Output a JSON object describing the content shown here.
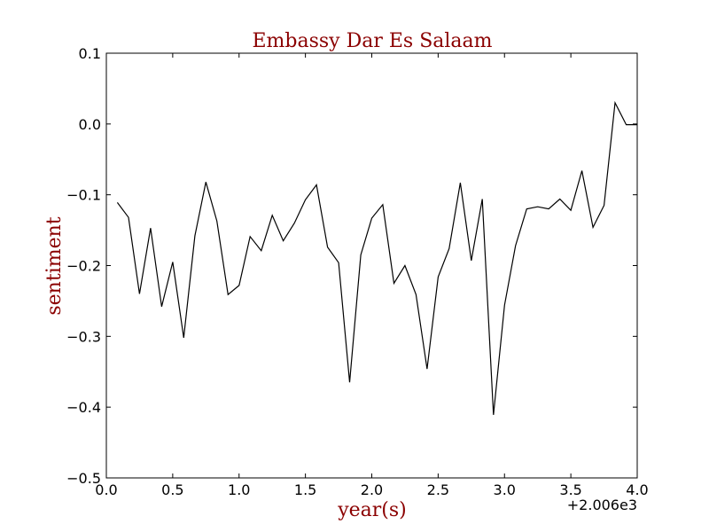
{
  "chart_data": {
    "type": "line",
    "title": "Embassy Dar Es Salaam",
    "xlabel": "year(s)",
    "ylabel": "sentiment",
    "x_offset_label": "+2.006e3",
    "xlim": [
      0.0,
      4.0
    ],
    "ylim": [
      -0.5,
      0.1
    ],
    "x_ticks": [
      "0.0",
      "0.5",
      "1.0",
      "1.5",
      "2.0",
      "2.5",
      "3.0",
      "3.5",
      "4.0"
    ],
    "y_ticks": [
      "0.1",
      "0.0",
      "−0.1",
      "−0.2",
      "−0.3",
      "−0.4",
      "−0.5"
    ],
    "grid": false,
    "series": [
      {
        "color": "#000000",
        "x": [
          0.083,
          0.167,
          0.25,
          0.333,
          0.417,
          0.5,
          0.583,
          0.667,
          0.75,
          0.833,
          0.917,
          1.0,
          1.083,
          1.167,
          1.25,
          1.333,
          1.417,
          1.5,
          1.583,
          1.667,
          1.75,
          1.833,
          1.917,
          2.0,
          2.083,
          2.167,
          2.25,
          2.333,
          2.417,
          2.5,
          2.583,
          2.667,
          2.75,
          2.833,
          2.917,
          3.0,
          3.083,
          3.167,
          3.25,
          3.333,
          3.417,
          3.5,
          3.583,
          3.667,
          3.75,
          3.833,
          3.917,
          4.0
        ],
        "y": [
          -0.111,
          -0.132,
          -0.24,
          -0.147,
          -0.258,
          -0.195,
          -0.302,
          -0.158,
          -0.082,
          -0.137,
          -0.241,
          -0.228,
          -0.159,
          -0.179,
          -0.129,
          -0.165,
          -0.14,
          -0.107,
          -0.086,
          -0.174,
          -0.196,
          -0.365,
          -0.185,
          -0.133,
          -0.114,
          -0.225,
          -0.2,
          -0.241,
          -0.346,
          -0.216,
          -0.176,
          -0.083,
          -0.193,
          -0.106,
          -0.411,
          -0.256,
          -0.172,
          -0.12,
          -0.117,
          -0.12,
          -0.106,
          -0.122,
          -0.066,
          -0.146,
          -0.115,
          0.03,
          -0.001,
          -0.001
        ]
      }
    ]
  }
}
